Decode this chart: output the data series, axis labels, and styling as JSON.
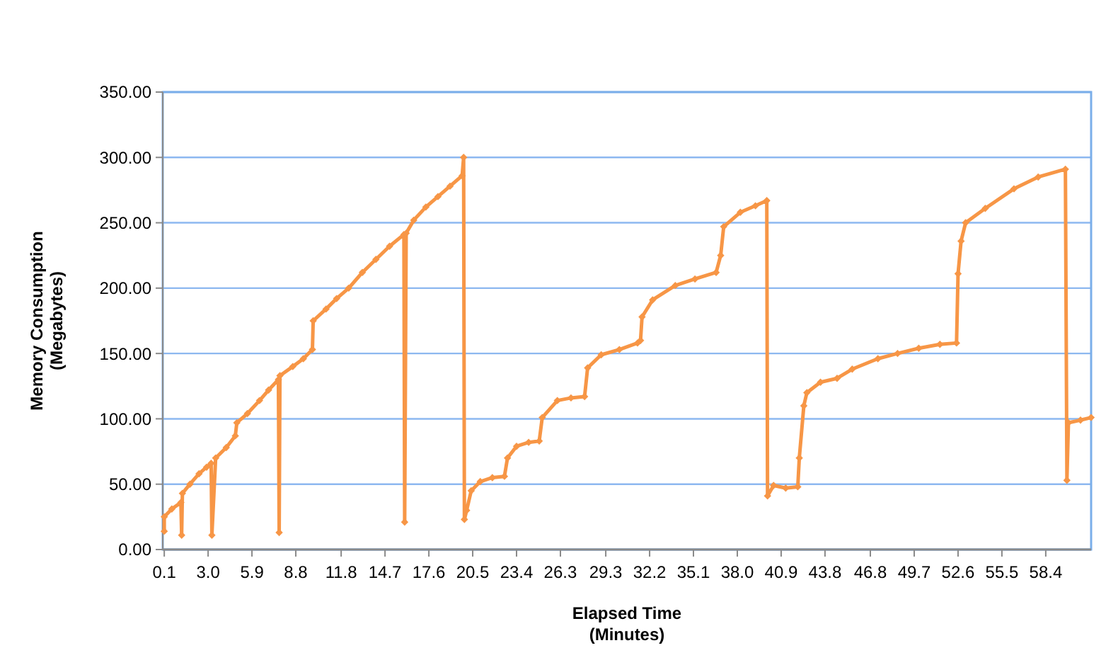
{
  "chart_data": {
    "type": "line",
    "xlabel": "Elapsed Time\n(Minutes)",
    "ylabel": "Memory Consumption\n(Megabytes)",
    "marker": "diamond",
    "line_style": "solid",
    "grid": "y",
    "xlim": [
      0,
      61.4
    ],
    "xticks": [
      {
        "value": 0.1,
        "label": "0.1"
      },
      {
        "value": 3.0,
        "label": "3.0"
      },
      {
        "value": 5.9,
        "label": "5.9"
      },
      {
        "value": 8.8,
        "label": "8.8"
      },
      {
        "value": 11.8,
        "label": "11.8"
      },
      {
        "value": 14.7,
        "label": "14.7"
      },
      {
        "value": 17.6,
        "label": "17.6"
      },
      {
        "value": 20.5,
        "label": "20.5"
      },
      {
        "value": 23.4,
        "label": "23.4"
      },
      {
        "value": 26.3,
        "label": "26.3"
      },
      {
        "value": 29.3,
        "label": "29.3"
      },
      {
        "value": 32.2,
        "label": "32.2"
      },
      {
        "value": 35.1,
        "label": "35.1"
      },
      {
        "value": 38.0,
        "label": "38.0"
      },
      {
        "value": 40.9,
        "label": "40.9"
      },
      {
        "value": 43.8,
        "label": "43.8"
      },
      {
        "value": 46.8,
        "label": "46.8"
      },
      {
        "value": 49.7,
        "label": "49.7"
      },
      {
        "value": 52.6,
        "label": "52.6"
      },
      {
        "value": 55.5,
        "label": "55.5"
      },
      {
        "value": 58.4,
        "label": "58.4"
      }
    ],
    "ylim": [
      0,
      350
    ],
    "yticks": [
      {
        "value": 0,
        "label": "0.00"
      },
      {
        "value": 50,
        "label": "50.00"
      },
      {
        "value": 100,
        "label": "100.00"
      },
      {
        "value": 150,
        "label": "150.00"
      },
      {
        "value": 200,
        "label": "200.00"
      },
      {
        "value": 250,
        "label": "250.00"
      },
      {
        "value": 300,
        "label": "300.00"
      },
      {
        "value": 350,
        "label": "350.00"
      }
    ],
    "series": [
      {
        "color": "#f79646",
        "x": [
          0.1,
          0.1,
          0.6,
          1.2,
          1.25,
          1.3,
          1.8,
          2.4,
          2.9,
          3.2,
          3.25,
          3.5,
          4.2,
          4.8,
          4.9,
          5.6,
          6.4,
          7.0,
          7.65,
          7.7,
          7.75,
          8.6,
          9.3,
          9.9,
          9.95,
          10.8,
          11.5,
          12.3,
          13.2,
          14.1,
          15.0,
          15.95,
          16.0,
          16.1,
          16.6,
          17.4,
          18.2,
          19.0,
          19.8,
          19.9,
          19.95,
          20.1,
          20.4,
          21.0,
          21.8,
          22.6,
          22.8,
          23.4,
          24.2,
          24.9,
          25.1,
          26.1,
          27.0,
          27.9,
          28.1,
          29.0,
          30.2,
          31.4,
          31.6,
          31.7,
          32.4,
          33.9,
          35.2,
          36.6,
          36.9,
          37.1,
          38.2,
          39.2,
          39.95,
          40.0,
          40.4,
          41.2,
          42.0,
          42.1,
          42.4,
          42.6,
          43.5,
          44.6,
          45.6,
          47.3,
          48.6,
          50.0,
          51.4,
          52.5,
          52.6,
          52.8,
          53.1,
          54.4,
          56.3,
          57.9,
          59.7,
          59.8,
          59.9,
          60.7,
          61.4
        ],
        "values": [
          14,
          25,
          31,
          36,
          11,
          43,
          50,
          58,
          63,
          66,
          11,
          70,
          78,
          87,
          97,
          104,
          114,
          122,
          130,
          13,
          133,
          140,
          146,
          153,
          175,
          184,
          192,
          200,
          212,
          222,
          232,
          241,
          21,
          242,
          252,
          262,
          270,
          278,
          286,
          300,
          23,
          30,
          45,
          52,
          55,
          56,
          70,
          79,
          82,
          83,
          101,
          114,
          116,
          117,
          139,
          149,
          153,
          158,
          160,
          178,
          191,
          202,
          207,
          212,
          225,
          247,
          258,
          263,
          267,
          41,
          49,
          47,
          48,
          70,
          110,
          120,
          128,
          131,
          138,
          146,
          150,
          154,
          157,
          158,
          211,
          236,
          250,
          261,
          276,
          285,
          291,
          53,
          97,
          99,
          101
        ]
      }
    ]
  }
}
